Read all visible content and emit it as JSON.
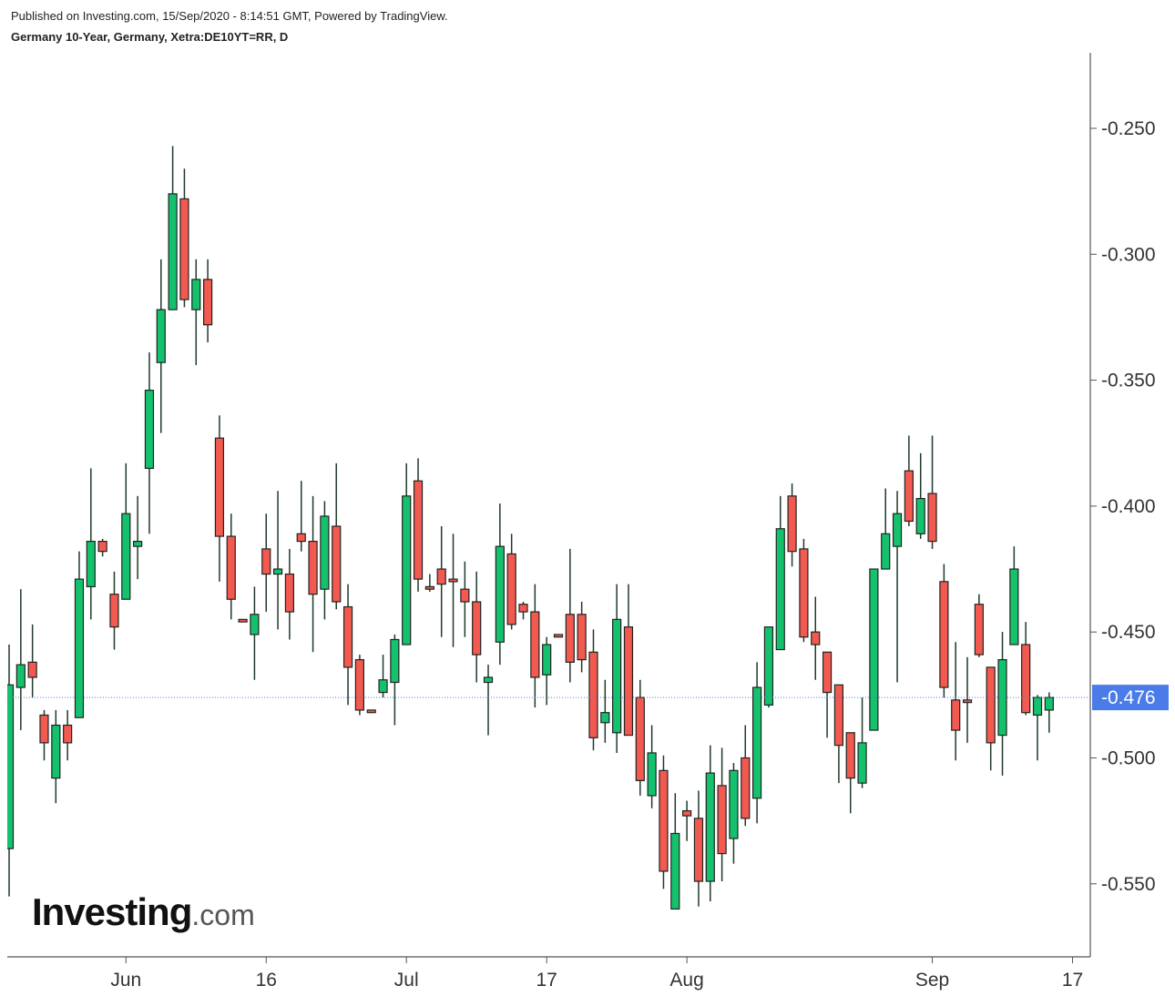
{
  "header": {
    "published": "Published on Investing.com, 15/Sep/2020 - 8:14:51 GMT, Powered by TradingView.",
    "symbol": "Germany 10-Year, Germany, Xetra:DE10YT=RR, D"
  },
  "logo": {
    "brand": "Investing",
    "suffix": ".com"
  },
  "chart_data": {
    "type": "candlestick",
    "categories": [
      null,
      null,
      null,
      null,
      null,
      null,
      null,
      null,
      null,
      null,
      "Jun",
      null,
      null,
      null,
      null,
      null,
      null,
      null,
      null,
      null,
      null,
      null,
      "16",
      null,
      null,
      null,
      null,
      null,
      null,
      null,
      null,
      null,
      null,
      null,
      "Jul",
      null,
      null,
      null,
      null,
      null,
      null,
      null,
      null,
      null,
      null,
      null,
      "17",
      null,
      null,
      null,
      null,
      null,
      null,
      null,
      null,
      null,
      null,
      null,
      "Aug",
      null,
      null,
      null,
      null,
      null,
      null,
      null,
      null,
      null,
      null,
      null,
      null,
      null,
      null,
      null,
      null,
      null,
      null,
      null,
      null,
      "Sep",
      null,
      null,
      null,
      null,
      null,
      null,
      null,
      null,
      null,
      null,
      null,
      "17"
    ],
    "open": [
      -0.536,
      -0.472,
      -0.462,
      -0.483,
      -0.508,
      -0.487,
      -0.484,
      -0.432,
      -0.414,
      -0.435,
      -0.437,
      -0.416,
      -0.385,
      -0.343,
      -0.322,
      -0.278,
      -0.322,
      -0.31,
      -0.373,
      -0.412,
      -0.445,
      -0.451,
      -0.417,
      -0.427,
      -0.427,
      -0.411,
      -0.414,
      -0.433,
      -0.408,
      -0.44,
      -0.461,
      -0.481,
      -0.474,
      -0.47,
      -0.455,
      -0.39,
      -0.432,
      -0.425,
      -0.429,
      -0.433,
      -0.438,
      -0.47,
      -0.454,
      -0.419,
      -0.439,
      -0.442,
      -0.467,
      -0.451,
      -0.443,
      -0.443,
      -0.458,
      -0.486,
      -0.49,
      -0.448,
      -0.476,
      -0.515,
      -0.505,
      -0.56,
      -0.521,
      -0.524,
      -0.549,
      -0.511,
      -0.532,
      -0.5,
      -0.516,
      -0.479,
      -0.457,
      -0.396,
      -0.417,
      -0.45,
      -0.458,
      -0.471,
      -0.49,
      -0.51,
      -0.489,
      -0.425,
      -0.416,
      -0.386,
      -0.411,
      -0.395,
      -0.43,
      -0.477,
      -0.477,
      -0.439,
      -0.464,
      -0.491,
      -0.455,
      -0.455,
      -0.483,
      -0.481,
      null,
      null
    ],
    "high": [
      -0.455,
      -0.433,
      -0.447,
      -0.481,
      -0.481,
      -0.481,
      -0.418,
      -0.385,
      -0.413,
      -0.426,
      -0.383,
      -0.396,
      -0.339,
      -0.302,
      -0.257,
      -0.266,
      -0.302,
      -0.302,
      -0.364,
      -0.403,
      -0.445,
      -0.432,
      -0.403,
      -0.394,
      -0.417,
      -0.39,
      -0.396,
      -0.398,
      -0.383,
      -0.431,
      -0.459,
      -0.481,
      -0.459,
      -0.451,
      -0.383,
      -0.381,
      -0.427,
      -0.408,
      -0.411,
      -0.422,
      -0.426,
      -0.463,
      -0.399,
      -0.411,
      -0.438,
      -0.431,
      -0.452,
      -0.451,
      -0.417,
      -0.438,
      -0.449,
      -0.469,
      -0.431,
      -0.431,
      -0.469,
      -0.487,
      -0.499,
      -0.514,
      -0.517,
      -0.513,
      -0.495,
      -0.496,
      -0.502,
      -0.487,
      -0.462,
      -0.448,
      -0.396,
      -0.391,
      -0.413,
      -0.436,
      -0.458,
      -0.471,
      -0.49,
      -0.476,
      -0.425,
      -0.393,
      -0.394,
      -0.372,
      -0.379,
      -0.372,
      -0.423,
      -0.454,
      -0.46,
      -0.435,
      -0.464,
      -0.45,
      -0.416,
      -0.446,
      -0.475,
      -0.474,
      null,
      null
    ],
    "low": [
      -0.555,
      -0.489,
      -0.476,
      -0.501,
      -0.518,
      -0.501,
      -0.484,
      -0.445,
      -0.42,
      -0.457,
      -0.437,
      -0.429,
      -0.411,
      -0.371,
      -0.322,
      -0.321,
      -0.344,
      -0.335,
      -0.43,
      -0.445,
      -0.446,
      -0.469,
      -0.442,
      -0.449,
      -0.453,
      -0.418,
      -0.458,
      -0.445,
      -0.441,
      -0.479,
      -0.483,
      -0.482,
      -0.476,
      -0.487,
      -0.455,
      -0.434,
      -0.434,
      -0.452,
      -0.456,
      -0.452,
      -0.47,
      -0.491,
      -0.463,
      -0.449,
      -0.445,
      -0.48,
      -0.479,
      -0.452,
      -0.47,
      -0.466,
      -0.497,
      -0.494,
      -0.498,
      -0.491,
      -0.515,
      -0.52,
      -0.552,
      -0.56,
      -0.533,
      -0.559,
      -0.557,
      -0.549,
      -0.542,
      -0.527,
      -0.526,
      -0.48,
      -0.457,
      -0.424,
      -0.454,
      -0.469,
      -0.492,
      -0.51,
      -0.522,
      -0.512,
      -0.489,
      -0.425,
      -0.47,
      -0.408,
      -0.413,
      -0.417,
      -0.476,
      -0.501,
      -0.494,
      -0.46,
      -0.505,
      -0.507,
      -0.455,
      -0.483,
      -0.501,
      -0.49,
      null,
      null
    ],
    "close": [
      -0.471,
      -0.463,
      -0.468,
      -0.494,
      -0.487,
      -0.494,
      -0.429,
      -0.414,
      -0.418,
      -0.448,
      -0.403,
      -0.414,
      -0.354,
      -0.322,
      -0.276,
      -0.318,
      -0.31,
      -0.328,
      -0.412,
      -0.437,
      -0.446,
      -0.443,
      -0.427,
      -0.425,
      -0.442,
      -0.414,
      -0.435,
      -0.404,
      -0.438,
      -0.464,
      -0.481,
      -0.482,
      -0.469,
      -0.453,
      -0.396,
      -0.429,
      -0.433,
      -0.431,
      -0.43,
      -0.438,
      -0.459,
      -0.468,
      -0.416,
      -0.447,
      -0.442,
      -0.468,
      -0.455,
      -0.452,
      -0.462,
      -0.461,
      -0.492,
      -0.482,
      -0.445,
      -0.491,
      -0.509,
      -0.498,
      -0.545,
      -0.53,
      -0.523,
      -0.549,
      -0.506,
      -0.538,
      -0.505,
      -0.524,
      -0.472,
      -0.448,
      -0.409,
      -0.418,
      -0.452,
      -0.455,
      -0.474,
      -0.495,
      -0.508,
      -0.494,
      -0.425,
      -0.411,
      -0.403,
      -0.406,
      -0.397,
      -0.414,
      -0.472,
      -0.489,
      -0.478,
      -0.459,
      -0.494,
      -0.461,
      -0.425,
      -0.482,
      -0.476,
      -0.476,
      null,
      null
    ],
    "last_price": -0.476,
    "ylim": [
      -0.579,
      -0.22
    ],
    "yticks": [
      {
        "value": -0.25,
        "label": "-0.250"
      },
      {
        "value": -0.3,
        "label": "-0.300"
      },
      {
        "value": -0.35,
        "label": "-0.350"
      },
      {
        "value": -0.4,
        "label": "-0.400"
      },
      {
        "value": -0.45,
        "label": "-0.450"
      },
      {
        "value": -0.5,
        "label": "-0.500"
      },
      {
        "value": -0.55,
        "label": "-0.550"
      }
    ],
    "up_color": "#14c26e",
    "down_color": "#f25a50",
    "wick_color": "#1f3a2a",
    "last_price_color": "#4a7be8",
    "grid": false
  }
}
